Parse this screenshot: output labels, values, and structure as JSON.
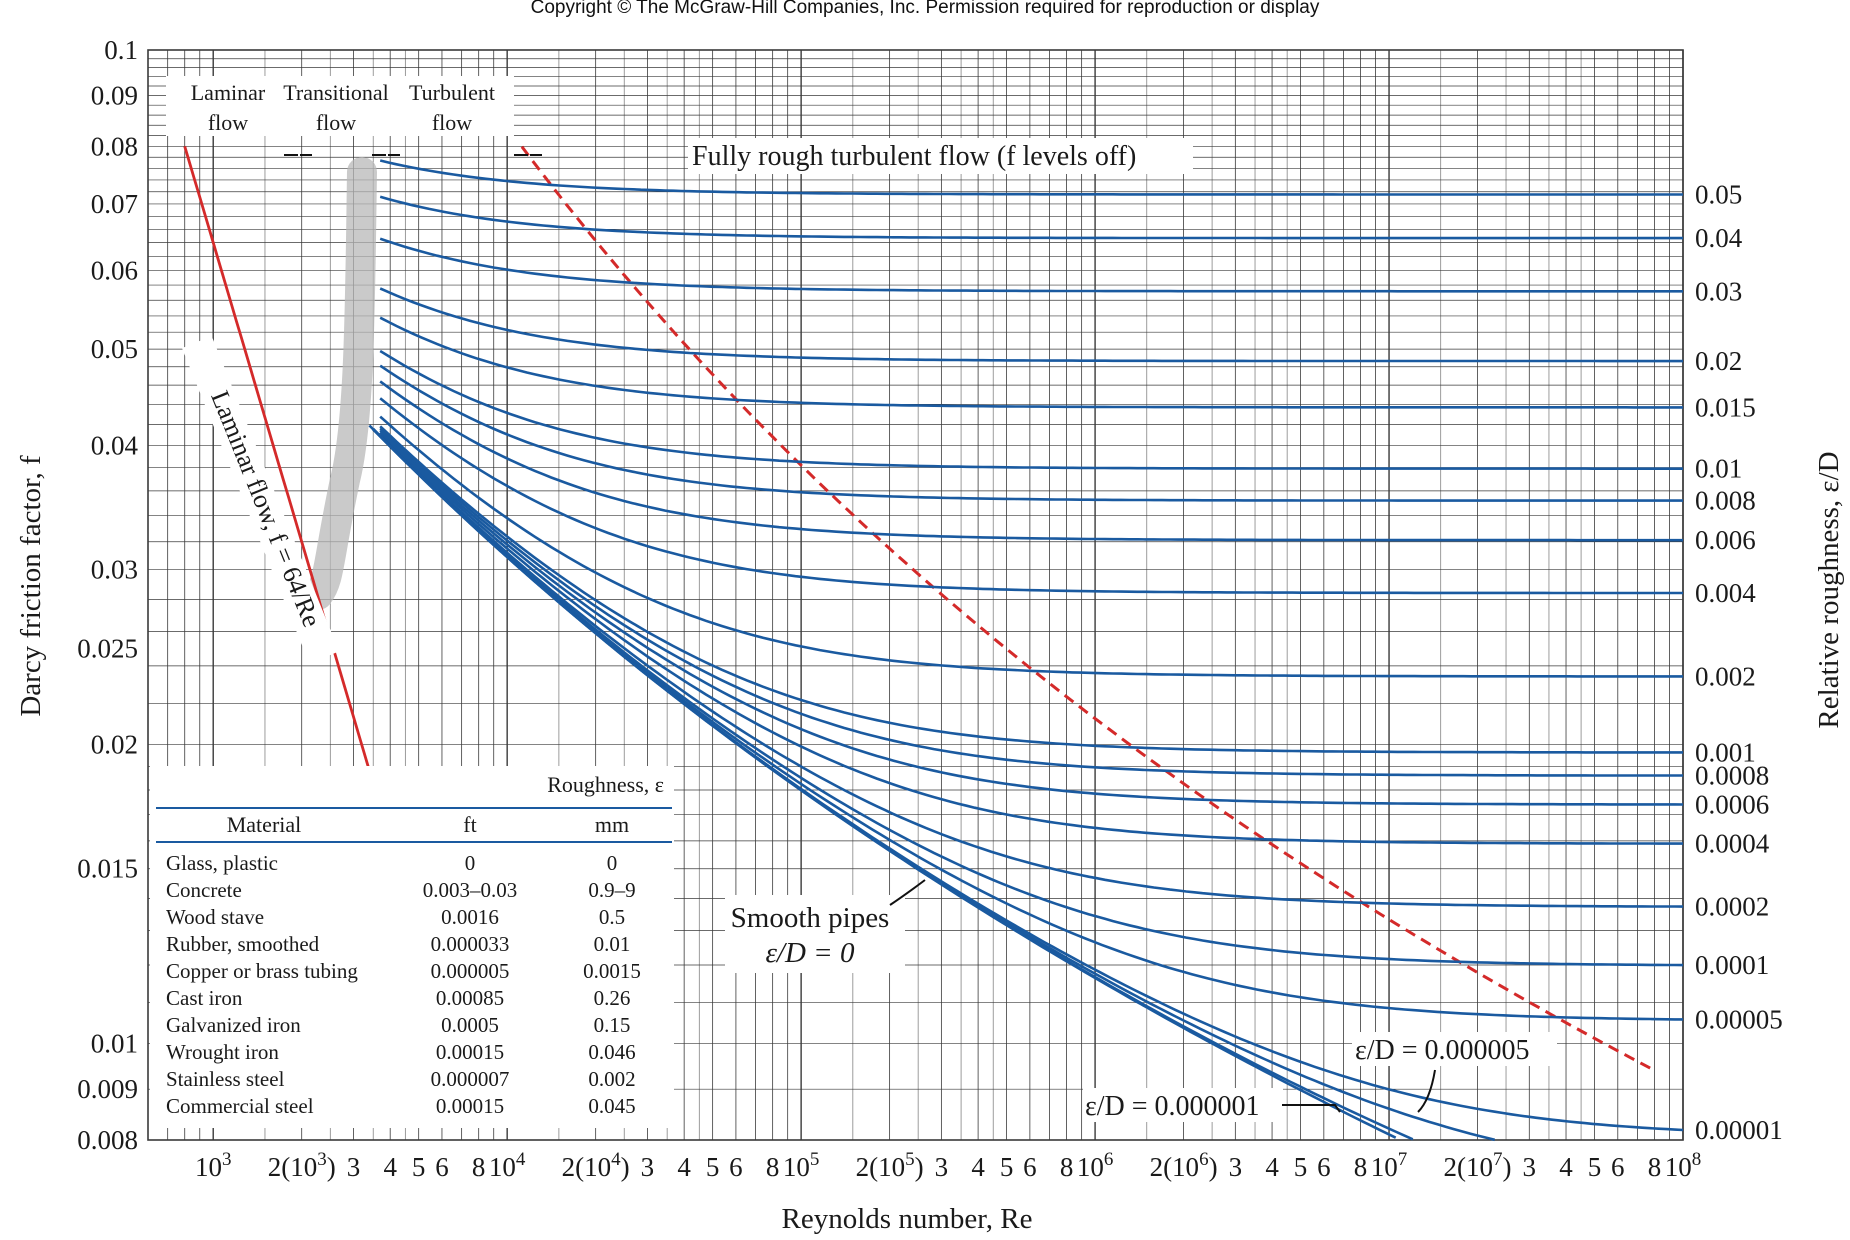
{
  "copyright": "Copyright © The McGraw-Hill Companies, Inc. Permission required for reproduction or display",
  "chart_data": {
    "type": "line",
    "xlabel": "Reynolds number, Re",
    "ylabel": "Darcy friction factor, f",
    "y2label": "Relative roughness, ε/D",
    "xscale": "log",
    "yscale": "log",
    "xlim": [
      600,
      100000000
    ],
    "ylim": [
      0.008,
      0.1
    ],
    "grid": true,
    "x_tick_labels": [
      {
        "x": 1000,
        "base": "10",
        "sup": "3"
      },
      {
        "x": 2000,
        "base": "2(10",
        "sup": "3",
        "tail": ")"
      },
      {
        "x": 3000,
        "base": "3"
      },
      {
        "x": 4000,
        "base": "4"
      },
      {
        "x": 5000,
        "base": "5"
      },
      {
        "x": 6000,
        "base": "6"
      },
      {
        "x": 8000,
        "base": "8"
      },
      {
        "x": 10000,
        "base": "10",
        "sup": "4"
      },
      {
        "x": 20000,
        "base": "2(10",
        "sup": "4",
        "tail": ")"
      },
      {
        "x": 30000,
        "base": "3"
      },
      {
        "x": 40000,
        "base": "4"
      },
      {
        "x": 50000,
        "base": "5"
      },
      {
        "x": 60000,
        "base": "6"
      },
      {
        "x": 80000,
        "base": "8"
      },
      {
        "x": 100000,
        "base": "10",
        "sup": "5"
      },
      {
        "x": 200000,
        "base": "2(10",
        "sup": "5",
        "tail": ")"
      },
      {
        "x": 300000,
        "base": "3"
      },
      {
        "x": 400000,
        "base": "4"
      },
      {
        "x": 500000,
        "base": "5"
      },
      {
        "x": 600000,
        "base": "6"
      },
      {
        "x": 800000,
        "base": "8"
      },
      {
        "x": 1000000,
        "base": "10",
        "sup": "6"
      },
      {
        "x": 2000000,
        "base": "2(10",
        "sup": "6",
        "tail": ")"
      },
      {
        "x": 3000000,
        "base": "3"
      },
      {
        "x": 4000000,
        "base": "4"
      },
      {
        "x": 5000000,
        "base": "5"
      },
      {
        "x": 6000000,
        "base": "6"
      },
      {
        "x": 8000000,
        "base": "8"
      },
      {
        "x": 10000000,
        "base": "10",
        "sup": "7"
      },
      {
        "x": 20000000,
        "base": "2(10",
        "sup": "7",
        "tail": ")"
      },
      {
        "x": 30000000,
        "base": "3"
      },
      {
        "x": 40000000,
        "base": "4"
      },
      {
        "x": 50000000,
        "base": "5"
      },
      {
        "x": 60000000,
        "base": "6"
      },
      {
        "x": 80000000,
        "base": "8"
      },
      {
        "x": 100000000,
        "base": "10",
        "sup": "8"
      }
    ],
    "y_ticks": [
      {
        "y": 0.1,
        "label": "0.1"
      },
      {
        "y": 0.09,
        "label": "0.09"
      },
      {
        "y": 0.08,
        "label": "0.08"
      },
      {
        "y": 0.07,
        "label": "0.07"
      },
      {
        "y": 0.06,
        "label": "0.06"
      },
      {
        "y": 0.05,
        "label": "0.05"
      },
      {
        "y": 0.04,
        "label": "0.04"
      },
      {
        "y": 0.03,
        "label": "0.03"
      },
      {
        "y": 0.025,
        "label": "0.025"
      },
      {
        "y": 0.02,
        "label": "0.02"
      },
      {
        "y": 0.015,
        "label": "0.015"
      },
      {
        "y": 0.01,
        "label": "0.01"
      },
      {
        "y": 0.009,
        "label": "0.009"
      },
      {
        "y": 0.008,
        "label": "0.008"
      }
    ],
    "roughness_curves": [
      {
        "label": "0.05",
        "value": 0.05
      },
      {
        "label": "0.04",
        "value": 0.04
      },
      {
        "label": "0.03",
        "value": 0.03
      },
      {
        "label": "0.02",
        "value": 0.02
      },
      {
        "label": "0.015",
        "value": 0.015
      },
      {
        "label": "0.01",
        "value": 0.01
      },
      {
        "label": "0.008",
        "value": 0.008
      },
      {
        "label": "0.006",
        "value": 0.006
      },
      {
        "label": "0.004",
        "value": 0.004
      },
      {
        "label": "0.002",
        "value": 0.002
      },
      {
        "label": "0.001",
        "value": 0.001
      },
      {
        "label": "0.0008",
        "value": 0.0008
      },
      {
        "label": "0.0006",
        "value": 0.0006
      },
      {
        "label": "0.0004",
        "value": 0.0004
      },
      {
        "label": "0.0002",
        "value": 0.0002
      },
      {
        "label": "0.0001",
        "value": 0.0001
      },
      {
        "label": "0.00005",
        "value": 5e-05
      },
      {
        "label": "0.00001",
        "value": 1e-05
      }
    ],
    "extra_curves": [
      5e-06,
      1e-06,
      0
    ],
    "laminar_line": {
      "label": "Laminar flow, f = 64/Re",
      "x_range": [
        800,
        3500
      ]
    },
    "annotations": {
      "laminar_region": [
        "Laminar",
        "flow"
      ],
      "transitional_region": [
        "Transitional",
        "flow"
      ],
      "turbulent_region": [
        "Turbulent",
        "flow"
      ],
      "fully_rough": "Fully rough turbulent flow (f levels off)",
      "smooth_pipes": [
        "Smooth pipes",
        "ε/D = 0"
      ],
      "ed_000005": "ε/D = 0.000005",
      "ed_000001": "ε/D = 0.000001"
    },
    "roughness_table": {
      "group_header": "Roughness, ε",
      "columns": [
        "Material",
        "ft",
        "mm"
      ],
      "rows": [
        [
          "Glass, plastic",
          "0",
          "0"
        ],
        [
          "Concrete",
          "0.003–0.03",
          "0.9–9"
        ],
        [
          "Wood stave",
          "0.0016",
          "0.5"
        ],
        [
          "Rubber, smoothed",
          "0.000033",
          "0.01"
        ],
        [
          "Copper or brass tubing",
          "0.000005",
          "0.0015"
        ],
        [
          "Cast iron",
          "0.00085",
          "0.26"
        ],
        [
          "Galvanized iron",
          "0.0005",
          "0.15"
        ],
        [
          "Wrought iron",
          "0.00015",
          "0.046"
        ],
        [
          "Stainless steel",
          "0.000007",
          "0.002"
        ],
        [
          "Commercial steel",
          "0.00015",
          "0.045"
        ]
      ]
    },
    "colors": {
      "curves": "#1a5aa0",
      "laminar": "#d42a2a",
      "grid": "#3a3a3a",
      "text": "#1a1a1a"
    }
  }
}
